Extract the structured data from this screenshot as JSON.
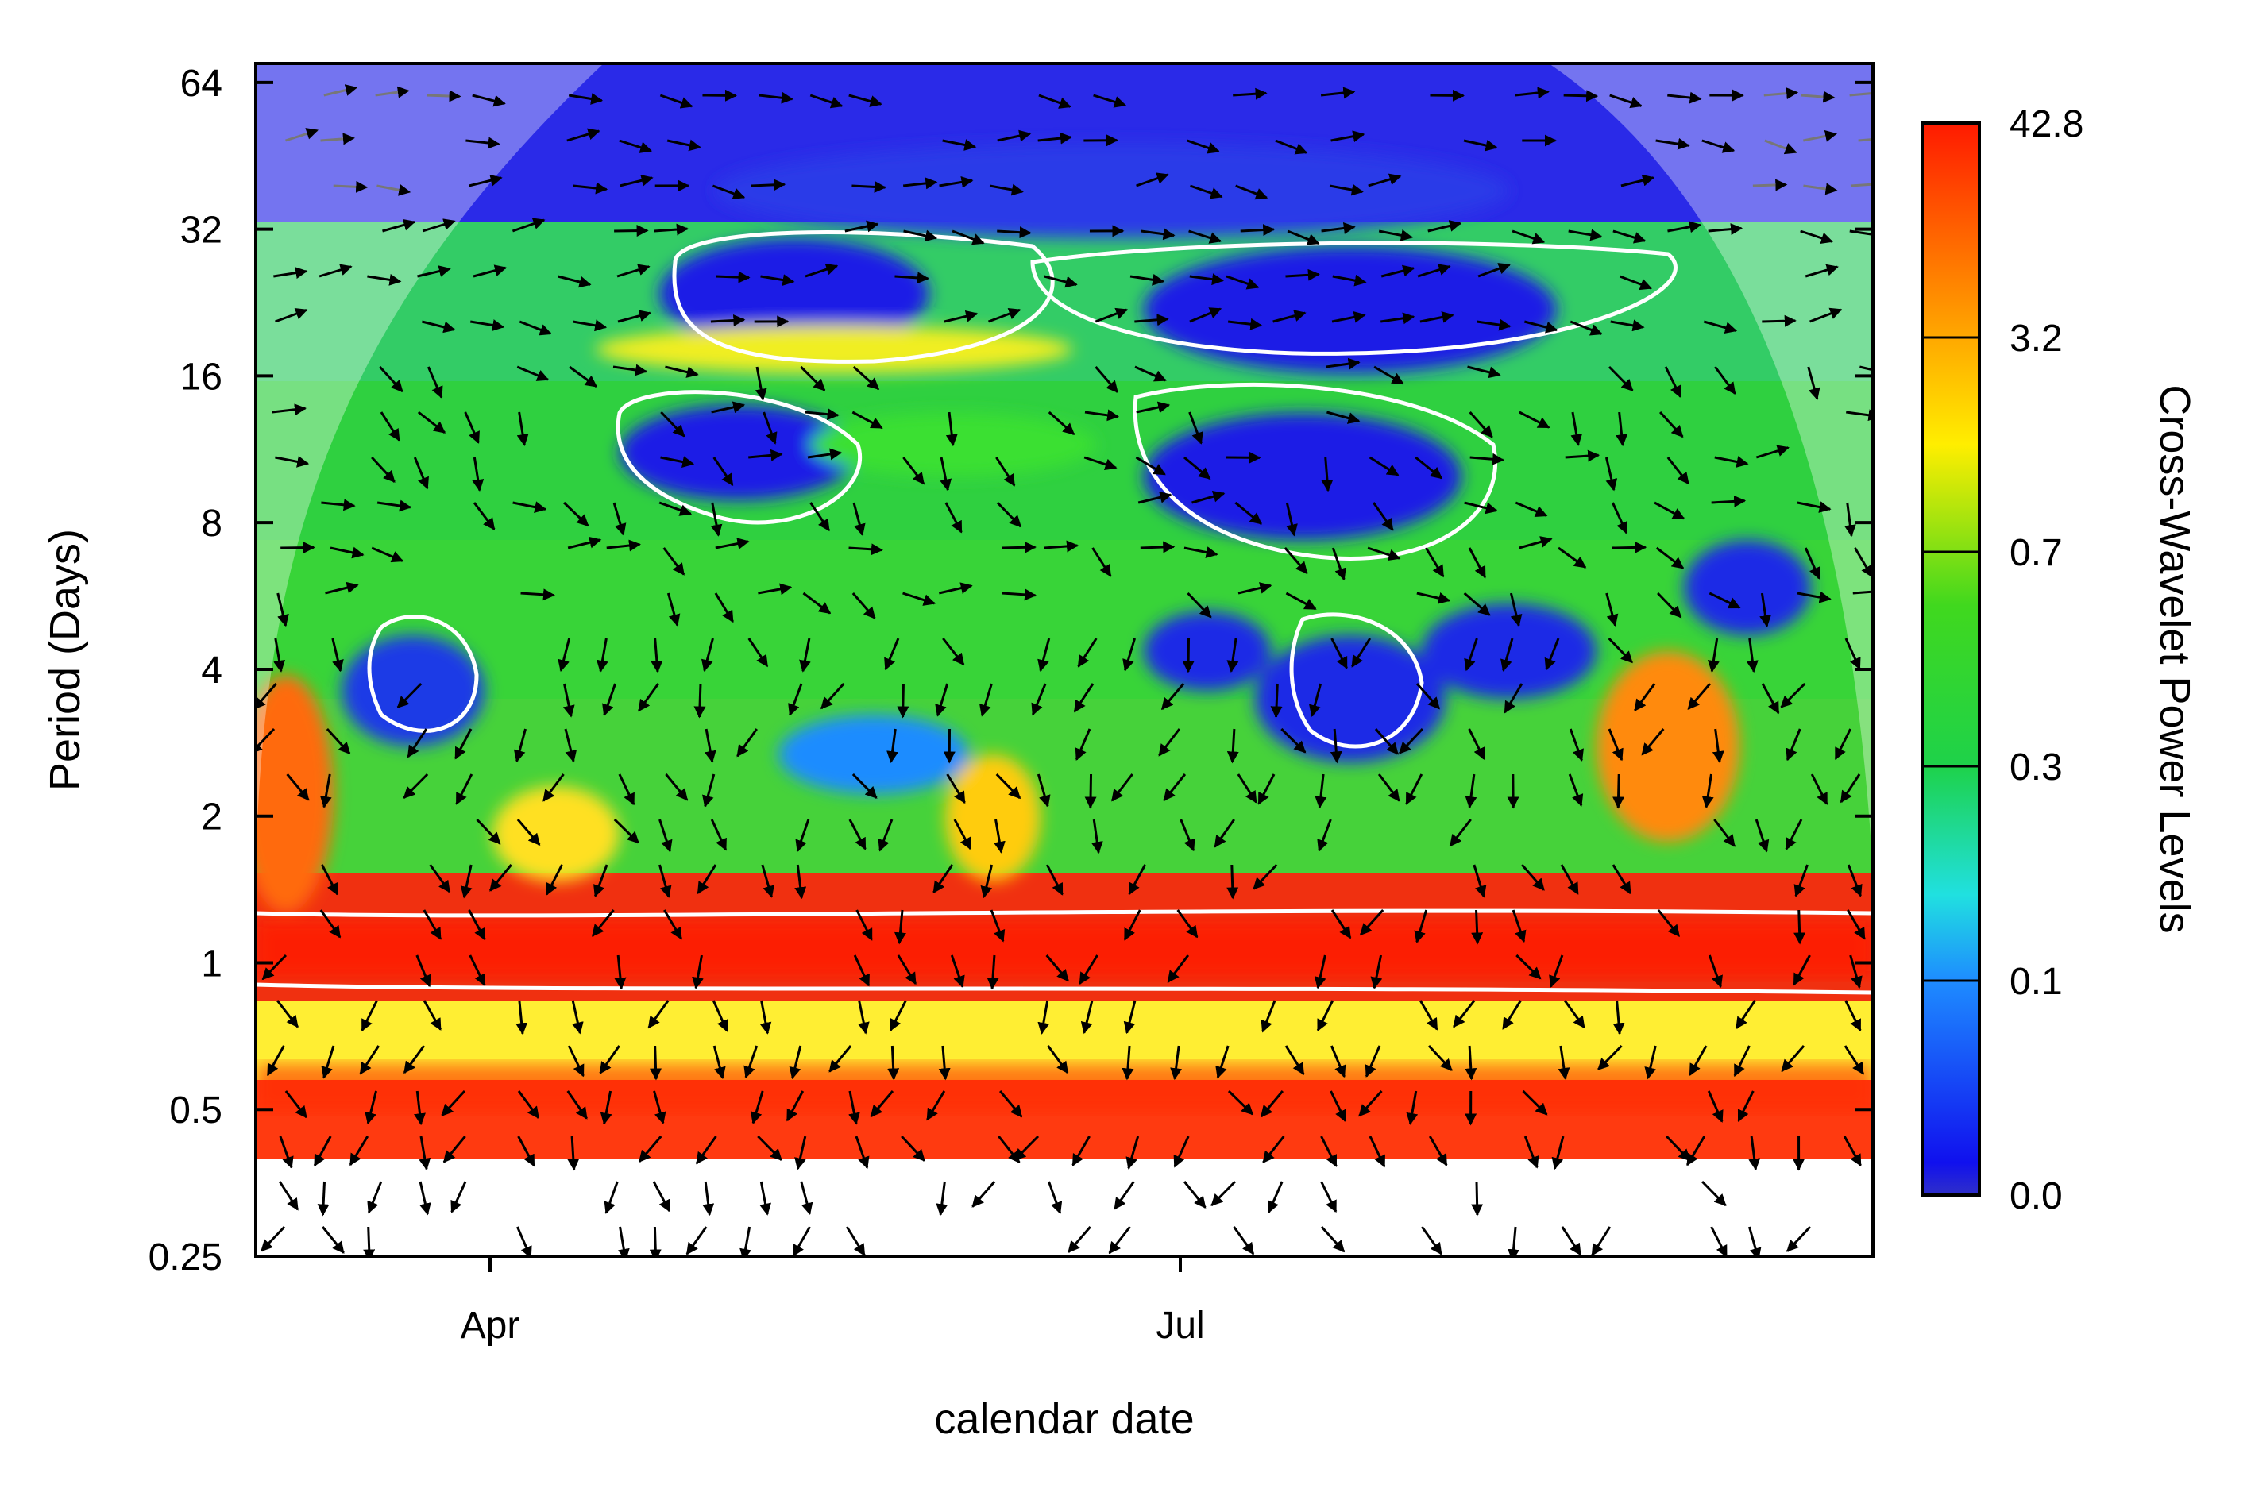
{
  "chart_data": {
    "type": "heatmap",
    "title": "",
    "xlabel": "calendar date",
    "ylabel": "Period (Days)",
    "x_ticks": [
      "Apr",
      "Jul"
    ],
    "y_scale": "log2",
    "y_ticks": [
      0.25,
      0.5,
      1,
      2,
      4,
      8,
      16,
      32,
      64
    ],
    "y_tick_labels": [
      "0.25",
      "0.5",
      "1",
      "2",
      "4",
      "8",
      "16",
      "32",
      "64"
    ],
    "ylim": [
      0.25,
      70
    ],
    "colorbar": {
      "label": "Cross-Wavelet Power Levels",
      "levels": [
        "0.0",
        "0.1",
        "0.3",
        "0.7",
        "3.2",
        "42.8"
      ],
      "colors": [
        "#1a1ae6",
        "#1e90ff",
        "#20e6d2",
        "#22c81e",
        "#ffee00",
        "#ff1a00"
      ]
    },
    "features": {
      "high_power_band_period_days": 1,
      "secondary_band_period_days": 0.5,
      "low_power_region_periods_days": [
        8,
        32
      ],
      "cone_of_influence": true,
      "phase_arrows": true,
      "significance_contours": true
    }
  }
}
